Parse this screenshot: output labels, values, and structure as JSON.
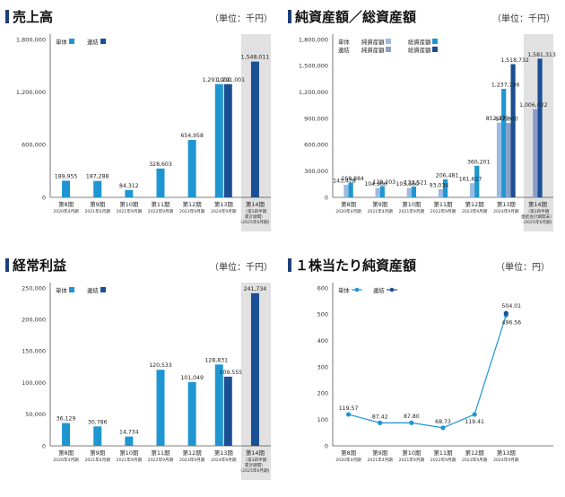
{
  "unit_label": "（単位：千円）",
  "unit_label_yen": "（単位：円）",
  "chart_data": [
    {
      "type": "bar",
      "title": "売上高",
      "ylim": [
        0,
        1800000
      ],
      "yticks": [
        "0",
        "600,000",
        "1,200,000",
        "1,800,000"
      ],
      "ytick_values": [
        0,
        600000,
        1200000,
        1800000
      ],
      "categories": [
        "第8期",
        "第9期",
        "第10期",
        "第11期",
        "第12期",
        "第13期",
        "第14期"
      ],
      "subcategories": [
        [
          "2020年4月期"
        ],
        [
          "2021年4月期"
        ],
        [
          "2021年9月期"
        ],
        [
          "2022年9月期"
        ],
        [
          "2023年9月期"
        ],
        [
          "2024年9月期"
        ],
        [
          "（第3四半期",
          "累計期間）",
          "(2025年6月期)"
        ]
      ],
      "series": [
        {
          "name": "単体",
          "color": "#1f96d2",
          "values": [
            189955,
            187288,
            84312,
            328603,
            654958,
            1291001,
            null
          ]
        },
        {
          "name": "連結",
          "color": "#1b4f93",
          "values": [
            null,
            null,
            null,
            null,
            null,
            1291001,
            1548011
          ]
        }
      ],
      "labels": [
        {
          "cat": 0,
          "series": 0,
          "text": "189,955"
        },
        {
          "cat": 1,
          "series": 0,
          "text": "187,288"
        },
        {
          "cat": 2,
          "series": 0,
          "text": "84,312"
        },
        {
          "cat": 3,
          "series": 0,
          "text": "328,603"
        },
        {
          "cat": 4,
          "series": 0,
          "text": "654,958"
        },
        {
          "cat": 5,
          "series": 0,
          "text": "1,291,001"
        },
        {
          "cat": 5,
          "series": 1,
          "text": "1,291,001"
        },
        {
          "cat": 6,
          "series": 1,
          "text": "1,548,011"
        }
      ]
    },
    {
      "type": "bar",
      "title": "純資産額／総資産額",
      "ylim": [
        0,
        1800000
      ],
      "yticks": [
        "0",
        "300,000",
        "600,000",
        "900,000",
        "1,200,000",
        "1,500,000",
        "1,800,000"
      ],
      "ytick_values": [
        0,
        300000,
        600000,
        900000,
        1200000,
        1500000,
        1800000
      ],
      "categories": [
        "第8期",
        "第9期",
        "第10期",
        "第11期",
        "第12期",
        "第13期",
        "第14期"
      ],
      "subcategories": [
        [
          "2020年4月期"
        ],
        [
          "2021年4月期"
        ],
        [
          "2021年9月期"
        ],
        [
          "2022年9月期"
        ],
        [
          "2023年9月期"
        ],
        [
          "2024年9月期"
        ],
        [
          "（第3四半期",
          "連結会計期間末）",
          "(2025年6月期)"
        ]
      ],
      "legend_rows": [
        {
          "label": "単体",
          "items": [
            {
              "name": "純資産額",
              "color": "#9bbbe0"
            },
            {
              "name": "総資産額",
              "color": "#1f96d2"
            }
          ]
        },
        {
          "label": "連結",
          "items": [
            {
              "name": "純資産額",
              "color": "#8a9fc7"
            },
            {
              "name": "総資産額",
              "color": "#1b4f93"
            }
          ]
        }
      ],
      "series": [
        {
          "name": "単体 純資産額",
          "color": "#9bbbe0",
          "values": [
            143478,
            104900,
            105360,
            93034,
            161627,
            852779,
            null
          ]
        },
        {
          "name": "単体 総資産額",
          "color": "#1f96d2",
          "values": [
            168884,
            128203,
            123521,
            206481,
            360201,
            1237196,
            null
          ]
        },
        {
          "name": "連結 純資産額",
          "color": "#8a9fc7",
          "values": [
            null,
            null,
            null,
            null,
            null,
            847900,
            1006022
          ]
        },
        {
          "name": "連結 総資産額",
          "color": "#1b4f93",
          "values": [
            null,
            null,
            null,
            null,
            null,
            1518732,
            1581313
          ]
        }
      ],
      "labels": [
        {
          "cat": 0,
          "series": 0,
          "text": "143,478"
        },
        {
          "cat": 0,
          "series": 1,
          "text": "168,884"
        },
        {
          "cat": 1,
          "series": 0,
          "text": "104,900"
        },
        {
          "cat": 1,
          "series": 1,
          "text": "128,203"
        },
        {
          "cat": 2,
          "series": 0,
          "text": "105,360"
        },
        {
          "cat": 2,
          "series": 1,
          "text": "123,521"
        },
        {
          "cat": 3,
          "series": 0,
          "text": "93,034"
        },
        {
          "cat": 3,
          "series": 1,
          "text": "206,481"
        },
        {
          "cat": 4,
          "series": 0,
          "text": "161,627"
        },
        {
          "cat": 4,
          "series": 1,
          "text": "360,201"
        },
        {
          "cat": 5,
          "series": 0,
          "text": "852,779"
        },
        {
          "cat": 5,
          "series": 1,
          "text": "1,237,196"
        },
        {
          "cat": 5,
          "series": 2,
          "text": "847,900"
        },
        {
          "cat": 5,
          "series": 3,
          "text": "1,518,732"
        },
        {
          "cat": 6,
          "series": 2,
          "text": "1,006,022"
        },
        {
          "cat": 6,
          "series": 3,
          "text": "1,581,313"
        }
      ]
    },
    {
      "type": "bar",
      "title": "経常利益",
      "ylim": [
        0,
        250000
      ],
      "yticks": [
        "0",
        "50,000",
        "100,000",
        "150,000",
        "200,000",
        "250,000"
      ],
      "ytick_values": [
        0,
        50000,
        100000,
        150000,
        200000,
        250000
      ],
      "categories": [
        "第8期",
        "第9期",
        "第10期",
        "第11期",
        "第12期",
        "第13期",
        "第14期"
      ],
      "subcategories": [
        [
          "2020年4月期"
        ],
        [
          "2021年4月期"
        ],
        [
          "2021年9月期"
        ],
        [
          "2022年9月期"
        ],
        [
          "2023年9月期"
        ],
        [
          "2024年9月期"
        ],
        [
          "（第3四半期",
          "累計期間）",
          "(2025年6月期)"
        ]
      ],
      "series": [
        {
          "name": "単体",
          "color": "#1f96d2",
          "values": [
            36129,
            30786,
            14734,
            120533,
            101049,
            128831,
            null
          ]
        },
        {
          "name": "連結",
          "color": "#1b4f93",
          "values": [
            null,
            null,
            null,
            null,
            null,
            109555,
            241734
          ]
        }
      ],
      "labels": [
        {
          "cat": 0,
          "series": 0,
          "text": "36,129"
        },
        {
          "cat": 1,
          "series": 0,
          "text": "30,786"
        },
        {
          "cat": 2,
          "series": 0,
          "text": "14,734"
        },
        {
          "cat": 3,
          "series": 0,
          "text": "120,533"
        },
        {
          "cat": 4,
          "series": 0,
          "text": "101,049"
        },
        {
          "cat": 5,
          "series": 0,
          "text": "128,831"
        },
        {
          "cat": 5,
          "series": 1,
          "text": "109,555"
        },
        {
          "cat": 6,
          "series": 1,
          "text": "241,734"
        }
      ]
    },
    {
      "type": "line",
      "title": "１株当たり純資産額",
      "ylim": [
        0,
        600
      ],
      "yticks": [
        "0",
        "100",
        "200",
        "300",
        "400",
        "500",
        "600"
      ],
      "ytick_values": [
        0,
        100,
        200,
        300,
        400,
        500,
        600
      ],
      "categories": [
        "第8期",
        "第9期",
        "第10期",
        "第11期",
        "第12期",
        "第13期"
      ],
      "subcategories": [
        [
          "2020年4月期"
        ],
        [
          "2021年4月期"
        ],
        [
          "2021年9月期"
        ],
        [
          "2022年9月期"
        ],
        [
          "2023年9月期"
        ],
        [
          "2024年9月期"
        ]
      ],
      "series": [
        {
          "name": "単体",
          "color": "#1f96d2",
          "values": [
            119.57,
            87.42,
            87.8,
            68.73,
            119.41,
            496.56
          ]
        },
        {
          "name": "連結",
          "color": "#1b4f93",
          "values": [
            null,
            null,
            null,
            null,
            null,
            504.01
          ]
        }
      ],
      "labels": [
        {
          "cat": 0,
          "series": 0,
          "text": "119.57"
        },
        {
          "cat": 1,
          "series": 0,
          "text": "87.42"
        },
        {
          "cat": 2,
          "series": 0,
          "text": "87.80"
        },
        {
          "cat": 3,
          "series": 0,
          "text": "68.73"
        },
        {
          "cat": 4,
          "series": 0,
          "text": "119.41"
        },
        {
          "cat": 5,
          "series": 0,
          "text": "496.56"
        },
        {
          "cat": 5,
          "series": 1,
          "text": "504.01"
        }
      ]
    }
  ]
}
